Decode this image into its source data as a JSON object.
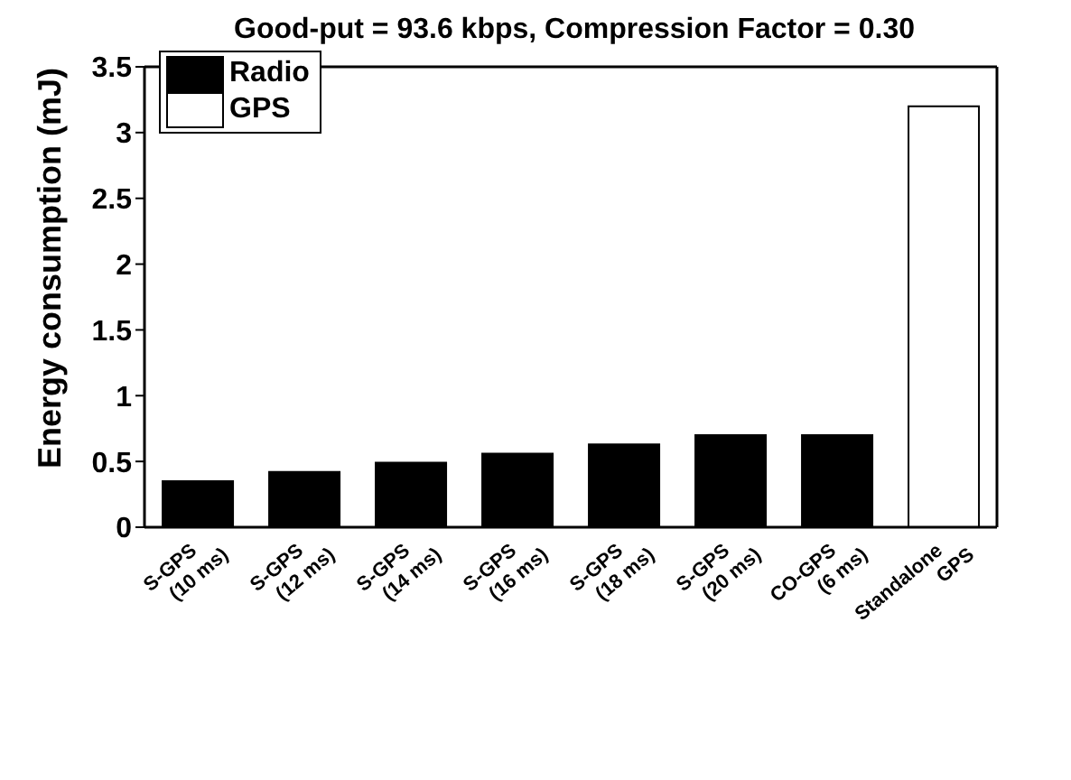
{
  "chart_data": {
    "type": "bar",
    "title": "Good-put = 93.6 kbps, Compression Factor = 0.30",
    "ylabel": "Energy consumption (mJ)",
    "categories": [
      "S-GPS\n(10 ms)",
      "S-GPS\n(12 ms)",
      "S-GPS\n(14 ms)",
      "S-GPS\n(16 ms)",
      "S-GPS\n(18 ms)",
      "S-GPS\n(20 ms)",
      "CO-GPS\n(6 ms)",
      "Standalone\nGPS"
    ],
    "series": [
      {
        "name": "Radio",
        "color": "#000000",
        "values": [
          0.35,
          0.42,
          0.49,
          0.56,
          0.63,
          0.7,
          0.7,
          null
        ]
      },
      {
        "name": "GPS",
        "color": "#ffffff",
        "values": [
          null,
          null,
          null,
          null,
          null,
          null,
          null,
          3.2
        ]
      }
    ],
    "stacked": true,
    "ylim": [
      0,
      3.5
    ],
    "yticks": [
      0,
      0.5,
      1,
      1.5,
      2,
      2.5,
      3,
      3.5
    ],
    "legend": "top left",
    "grid": false
  }
}
